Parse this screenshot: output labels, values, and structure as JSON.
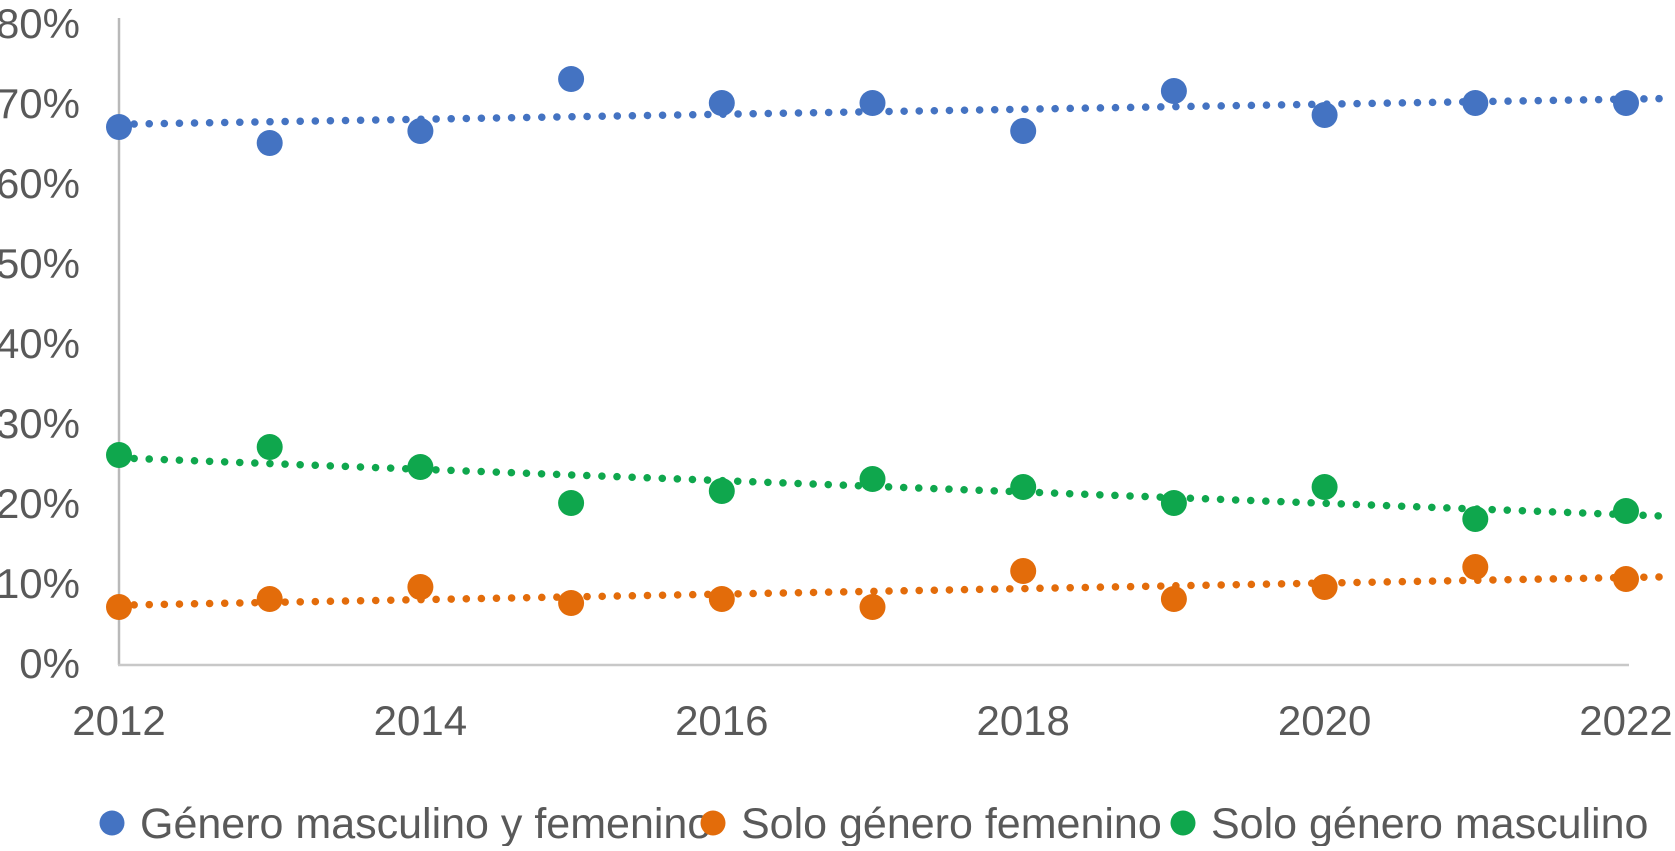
{
  "chart_data": {
    "type": "scatter",
    "title": "",
    "xlabel": "",
    "ylabel": "",
    "x": [
      2012,
      2013,
      2014,
      2015,
      2016,
      2017,
      2018,
      2019,
      2020,
      2021,
      2022
    ],
    "x_tick_labels": [
      "2012",
      "2014",
      "2016",
      "2018",
      "2020",
      "2022"
    ],
    "y_tick_labels": [
      "0%",
      "10%",
      "20%",
      "30%",
      "40%",
      "50%",
      "60%",
      "70%",
      "80%"
    ],
    "xlim": [
      2012,
      2022
    ],
    "ylim": [
      0,
      80
    ],
    "y_unit": "%",
    "grid": false,
    "legend_position": "bottom",
    "marker_style": "filled-circle",
    "trendline_style": "dotted-linear",
    "series": [
      {
        "name": "Género masculino y femenino",
        "color": "#4473C2",
        "values": [
          67,
          65,
          66.5,
          73,
          70,
          70,
          66.5,
          71.5,
          68.5,
          70,
          70
        ]
      },
      {
        "name": "Solo género femenino",
        "color": "#E36C0A",
        "values": [
          7,
          8,
          9.5,
          7.5,
          8,
          7,
          11.5,
          8,
          9.5,
          12,
          10.5
        ]
      },
      {
        "name": "Solo género masculino",
        "color": "#0FA74D",
        "values": [
          26,
          27,
          24.5,
          20,
          21.5,
          23,
          22,
          20,
          22,
          18,
          19
        ]
      }
    ],
    "axis_text_color": "#595959",
    "axis_line_color": "#C8C8C8",
    "background_color": "#FFFFFF"
  }
}
